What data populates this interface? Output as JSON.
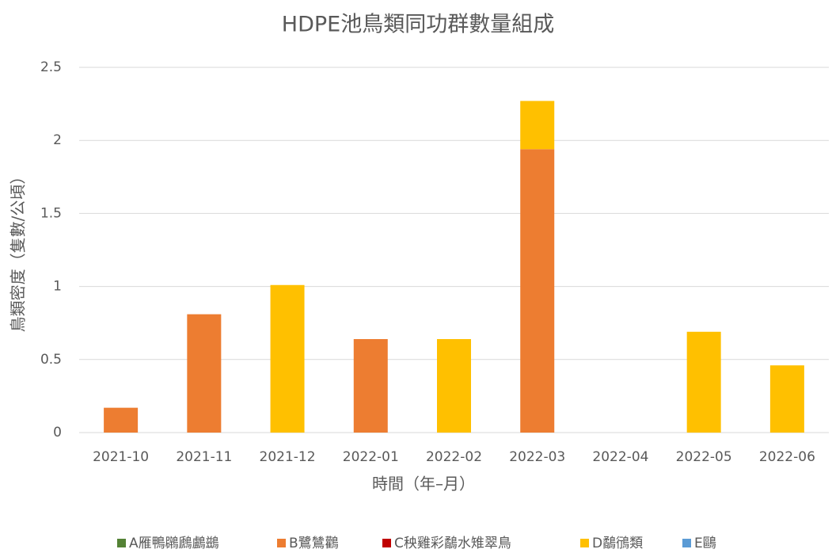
{
  "chart_data": {
    "type": "stacked_bar",
    "title": "HDPE池鳥類同功群數量組成",
    "y_label": "鳥類密度（隻數/公頃）",
    "x_label": "時間（年–月）",
    "categories": [
      "2021-10",
      "2021-11",
      "2021-12",
      "2022-01",
      "2022-02",
      "2022-03",
      "2022-04",
      "2022-05",
      "2022-06"
    ],
    "series": [
      {
        "name": "A雁鴨鸊鷉鸕鷀",
        "color": "#548235",
        "values": [
          0,
          0,
          0,
          0,
          0,
          0,
          0,
          0,
          0
        ]
      },
      {
        "name": "B鷺鷥鸛",
        "color": "#ed7d31",
        "values": [
          0.17,
          0.81,
          0,
          0.64,
          0,
          1.94,
          0,
          0,
          0
        ]
      },
      {
        "name": "C秧雞彩鷸水雉翠鳥",
        "color": "#c00000",
        "values": [
          0,
          0,
          0,
          0,
          0,
          0,
          0,
          0,
          0
        ]
      },
      {
        "name": "D鷸鴴類",
        "color": "#ffc000",
        "values": [
          0,
          0,
          1.01,
          0,
          0.64,
          0.33,
          0,
          0.69,
          0.46
        ]
      },
      {
        "name": "E鷗",
        "color": "#5b9bd5",
        "values": [
          0,
          0,
          0,
          0,
          0,
          0,
          0,
          0,
          0
        ]
      }
    ],
    "ylim": [
      0,
      2.5
    ],
    "yticks": [
      0,
      0.5,
      1,
      1.5,
      2,
      2.5
    ],
    "grid": true,
    "legend": "bottom"
  }
}
